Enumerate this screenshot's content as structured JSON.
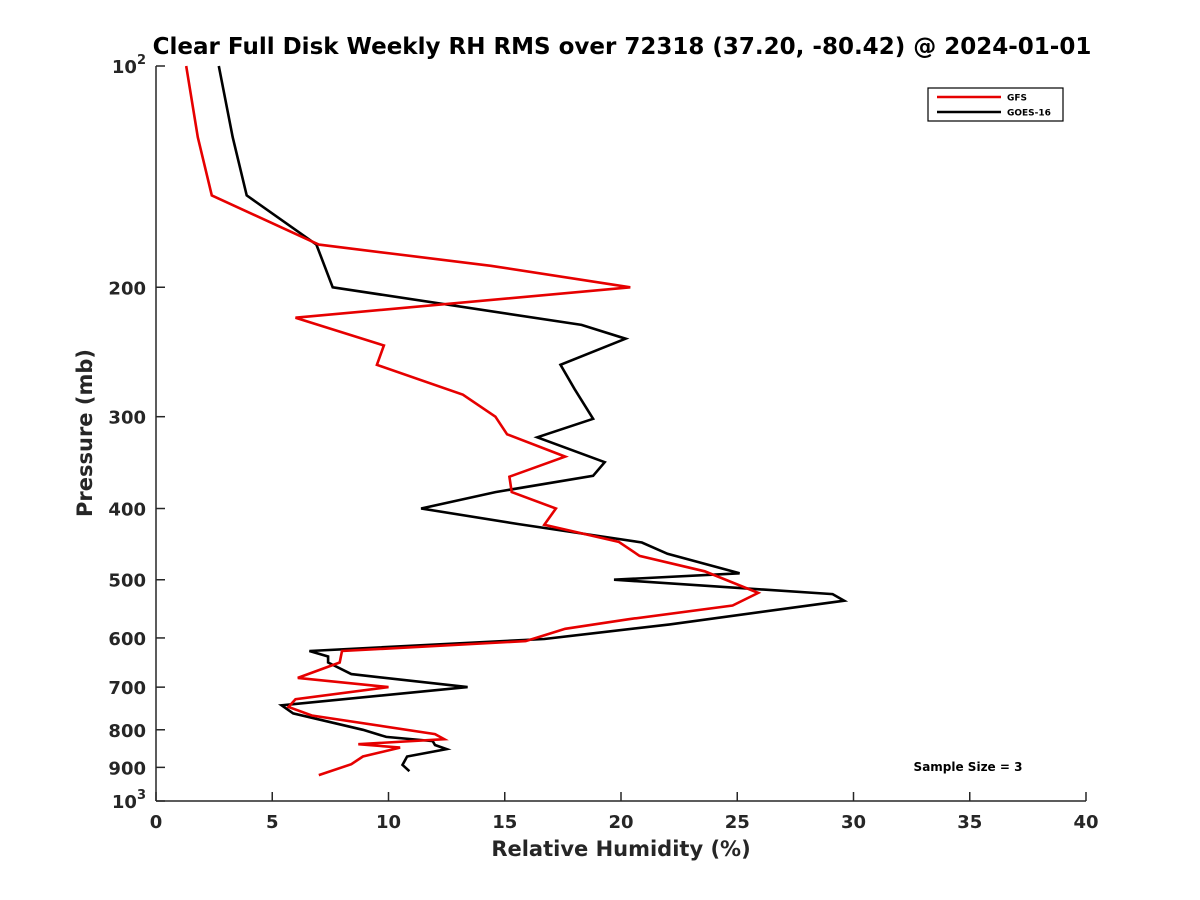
{
  "chart_data": {
    "type": "line",
    "title": "Clear Full Disk Weekly RH RMS over 72318 (37.20, -80.42) @ 2024-01-01",
    "xlabel": "Relative Humidity (%)",
    "ylabel": "Pressure (mb)",
    "xlim": [
      0,
      40
    ],
    "ylim": [
      100,
      1000
    ],
    "y_scale": "log",
    "y_reversed": true,
    "grid": false,
    "legend_position": "top-right",
    "x_ticks": [
      "0",
      "5",
      "10",
      "15",
      "20",
      "25",
      "30",
      "35",
      "40"
    ],
    "y_ticks": [
      {
        "value": 100,
        "label": "10",
        "sup": "2"
      },
      {
        "value": 200,
        "label": "200"
      },
      {
        "value": 300,
        "label": "300"
      },
      {
        "value": 400,
        "label": "400"
      },
      {
        "value": 500,
        "label": "500"
      },
      {
        "value": 600,
        "label": "600"
      },
      {
        "value": 700,
        "label": "700"
      },
      {
        "value": 800,
        "label": "800"
      },
      {
        "value": 900,
        "label": "900"
      },
      {
        "value": 1000,
        "label": "10",
        "sup": "3"
      }
    ],
    "annotation": "Sample Size = 3",
    "series": [
      {
        "name": "GFS",
        "color": "#e60000",
        "points": [
          [
            1.3,
            100
          ],
          [
            1.8,
            125
          ],
          [
            2.4,
            150
          ],
          [
            7.0,
            175
          ],
          [
            14.4,
            187
          ],
          [
            20.4,
            200
          ],
          [
            6.0,
            220
          ],
          [
            9.8,
            240
          ],
          [
            9.5,
            255
          ],
          [
            13.2,
            280
          ],
          [
            14.6,
            300
          ],
          [
            15.1,
            317
          ],
          [
            17.6,
            340
          ],
          [
            15.2,
            362
          ],
          [
            15.3,
            380
          ],
          [
            17.2,
            400
          ],
          [
            16.7,
            421
          ],
          [
            19.9,
            444
          ],
          [
            20.8,
            464
          ],
          [
            23.6,
            487
          ],
          [
            25.9,
            521
          ],
          [
            24.8,
            542
          ],
          [
            20.3,
            566
          ],
          [
            17.6,
            583
          ],
          [
            15.9,
            606
          ],
          [
            8.0,
            625
          ],
          [
            7.9,
            648
          ],
          [
            6.1,
            680
          ],
          [
            10.0,
            700
          ],
          [
            6.0,
            727
          ],
          [
            5.7,
            745
          ],
          [
            6.7,
            765
          ],
          [
            12.0,
            811
          ],
          [
            12.4,
            824
          ],
          [
            8.7,
            837
          ],
          [
            10.5,
            846
          ],
          [
            8.9,
            870
          ],
          [
            8.4,
            891
          ],
          [
            7.0,
            922
          ]
        ]
      },
      {
        "name": "GOES-16",
        "color": "#000000",
        "points": [
          [
            2.7,
            100
          ],
          [
            3.3,
            125
          ],
          [
            3.9,
            150
          ],
          [
            6.9,
            175
          ],
          [
            7.6,
            200
          ],
          [
            18.3,
            225
          ],
          [
            20.2,
            235
          ],
          [
            17.4,
            255
          ],
          [
            18.0,
            275
          ],
          [
            18.8,
            302
          ],
          [
            16.4,
            320
          ],
          [
            19.3,
            346
          ],
          [
            18.8,
            361
          ],
          [
            14.6,
            380
          ],
          [
            11.4,
            400
          ],
          [
            15.6,
            420
          ],
          [
            20.9,
            445
          ],
          [
            22.0,
            461
          ],
          [
            25.1,
            490
          ],
          [
            19.7,
            500
          ],
          [
            29.1,
            523
          ],
          [
            29.6,
            534
          ],
          [
            22.1,
            575
          ],
          [
            16.7,
            602
          ],
          [
            6.6,
            625
          ],
          [
            7.4,
            636
          ],
          [
            7.4,
            648
          ],
          [
            8.4,
            672
          ],
          [
            13.4,
            700
          ],
          [
            5.4,
            741
          ],
          [
            5.9,
            760
          ],
          [
            8.9,
            800
          ],
          [
            9.9,
            818
          ],
          [
            11.9,
            829
          ],
          [
            12.0,
            839
          ],
          [
            12.5,
            850
          ],
          [
            10.8,
            870
          ],
          [
            10.6,
            893
          ],
          [
            10.9,
            911
          ]
        ]
      }
    ]
  }
}
